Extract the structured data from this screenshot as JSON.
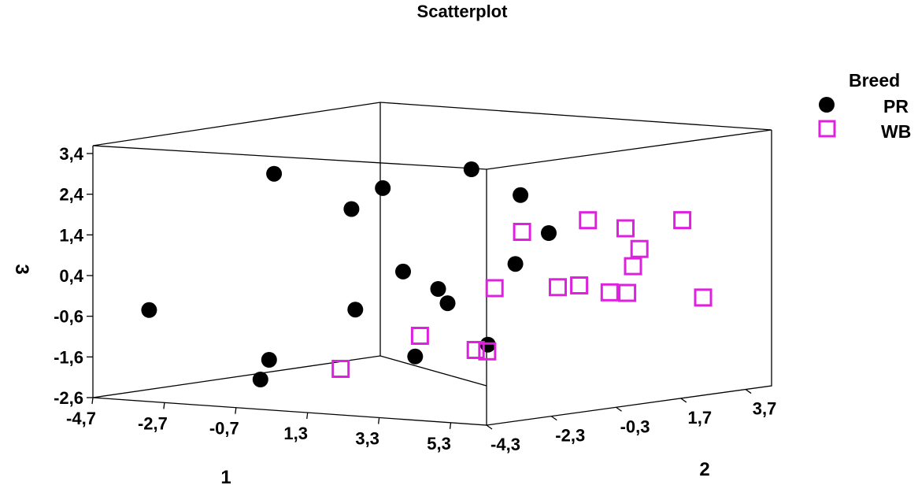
{
  "chart_data": {
    "type": "scatter",
    "title": "Scatterplot",
    "xlabel": "1",
    "ylabel": "2",
    "zlabel": "3",
    "x_ticks": [
      "-4,7",
      "-2,7",
      "-0,7",
      "1,3",
      "3,3",
      "5,3"
    ],
    "y_ticks": [
      "-4,3",
      "-2,3",
      "-0,3",
      "1,7",
      "3,7"
    ],
    "z_ticks": [
      "3,4",
      "2,4",
      "1,4",
      "0,4",
      "-0,6",
      "-1,6",
      "-2,6"
    ],
    "legend": {
      "title": "Breed",
      "placement": "top-right",
      "entries": [
        "PR",
        "WB"
      ]
    },
    "series": [
      {
        "name": "PR",
        "marker": "filled-circle",
        "color": "#000000",
        "points": [
          {
            "x": -3.4,
            "y": -4.0,
            "z": -0.4
          },
          {
            "x": -1.9,
            "y": -1.8,
            "z": 2.8
          },
          {
            "x": -0.5,
            "y": -3.5,
            "z": -1.5
          },
          {
            "x": -0.1,
            "y": -1.4,
            "z": 2.0
          },
          {
            "x": -0.2,
            "y": -4.1,
            "z": -1.9
          },
          {
            "x": 1.5,
            "y": -2.2,
            "z": 2.7
          },
          {
            "x": 2.0,
            "y": -3.6,
            "z": -0.1
          },
          {
            "x": 2.7,
            "y": -2.9,
            "z": 0.8
          },
          {
            "x": 3.4,
            "y": -3.3,
            "z": -1.2
          },
          {
            "x": 3.5,
            "y": -2.7,
            "z": 0.4
          },
          {
            "x": 2.8,
            "y": -0.9,
            "z": 3.1
          },
          {
            "x": 3.4,
            "y": -2.3,
            "z": 0.0
          },
          {
            "x": 3.9,
            "y": -0.6,
            "z": 2.5
          },
          {
            "x": 4.8,
            "y": -2.6,
            "z": -0.9
          },
          {
            "x": 4.3,
            "y": -1.2,
            "z": 0.9
          },
          {
            "x": 4.6,
            "y": -0.5,
            "z": 1.6
          }
        ]
      },
      {
        "name": "WB",
        "marker": "open-square",
        "color": "#e020e0",
        "points": [
          {
            "x": 1.5,
            "y": -3.5,
            "z": -1.6
          },
          {
            "x": 2.9,
            "y": -2.6,
            "z": -0.8
          },
          {
            "x": 3.1,
            "y": -1.1,
            "z": -1.3
          },
          {
            "x": 3.4,
            "y": 0.0,
            "z": 1.5
          },
          {
            "x": 4.6,
            "y": -2.4,
            "z": -1.1
          },
          {
            "x": 3.9,
            "y": -1.4,
            "z": 0.3
          },
          {
            "x": 4.4,
            "y": 0.0,
            "z": 0.2
          },
          {
            "x": 4.0,
            "y": 1.1,
            "z": 0.1
          },
          {
            "x": 4.7,
            "y": 0.6,
            "z": 1.8
          },
          {
            "x": 4.4,
            "y": 1.6,
            "z": -0.1
          },
          {
            "x": 4.6,
            "y": 2.1,
            "z": 0.5
          },
          {
            "x": 4.3,
            "y": 2.2,
            "z": 1.4
          },
          {
            "x": 4.8,
            "y": 1.7,
            "z": -0.1
          },
          {
            "x": 4.6,
            "y": 2.3,
            "z": 0.9
          },
          {
            "x": 4.8,
            "y": 3.4,
            "z": 1.5
          },
          {
            "x": 5.2,
            "y": 3.6,
            "z": -0.4
          }
        ]
      }
    ]
  }
}
